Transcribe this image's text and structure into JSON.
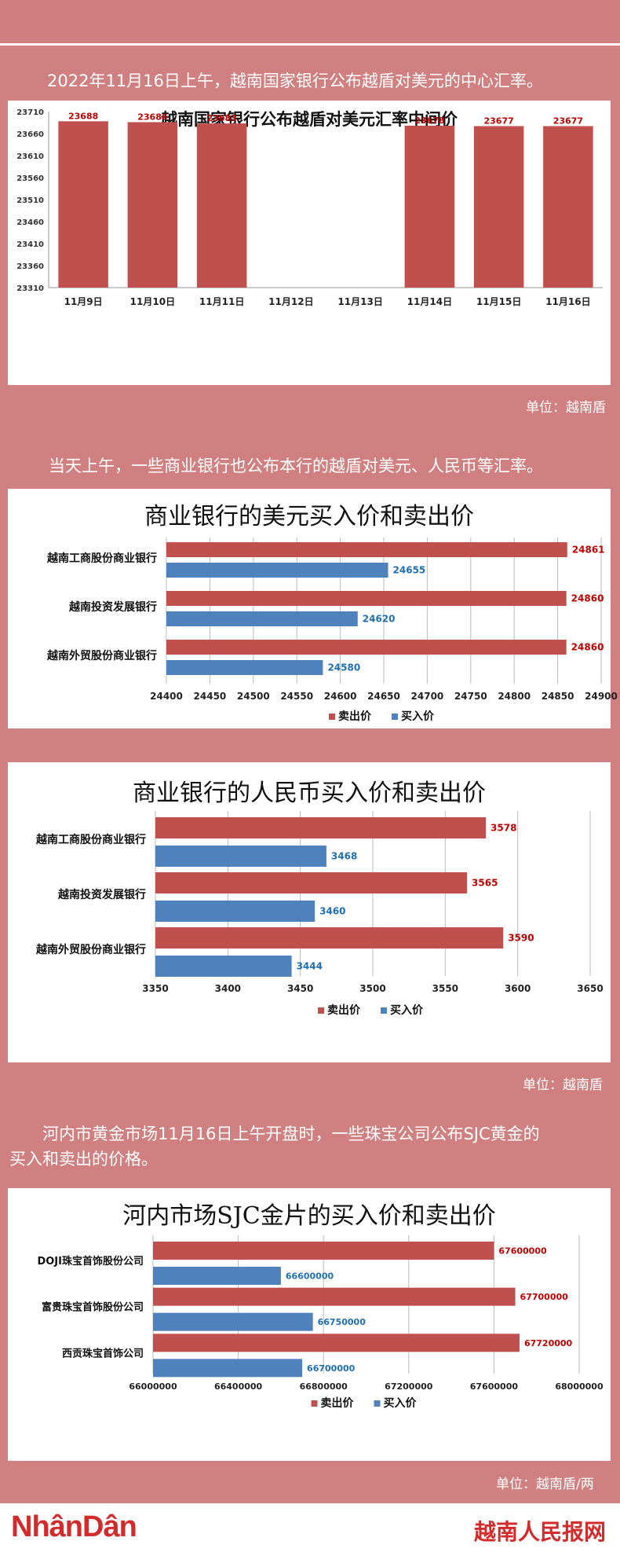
{
  "intro1": "2022年11月16日上午，越南国家银行公布越盾对美元的中心汇率。",
  "intro2": "当天上午，一些商业银行也公布本行的越盾对美元、人民币等汇率。",
  "intro3_line1": "河内市黄金市场11月16日上午开盘时，一些珠宝公司公布SJC黄金的",
  "intro3_line2": "买入和卖出的价格。",
  "unit1": "单位：越南盾",
  "unit2": "单位：越南盾",
  "unit3": "单位：越南盾/两",
  "footer": {
    "logo": "NhânDân",
    "brand": "越南人民报网"
  },
  "colors": {
    "sell": "#c0504d",
    "buy": "#4f81bd",
    "bg": "#d08080"
  },
  "legend": {
    "sell": "卖出价",
    "buy": "买入价"
  },
  "chart_data": [
    {
      "type": "bar",
      "title": "越南国家银行公布越盾对美元汇率中间价",
      "categories": [
        "11月9日",
        "11月10日",
        "11月11日",
        "11月12日",
        "11月13日",
        "11月14日",
        "11月15日",
        "11月16日"
      ],
      "values": [
        23688,
        23686,
        23683,
        null,
        null,
        23678,
        23677,
        23677
      ],
      "yticks": [
        23310,
        23360,
        23410,
        23460,
        23510,
        23560,
        23610,
        23660,
        23710
      ],
      "ylim": [
        23310,
        23710
      ],
      "color": "#c0504d"
    },
    {
      "type": "bar",
      "orientation": "horizontal",
      "title": "商业银行的美元买入价和卖出价",
      "categories": [
        "越南工商股份商业银行",
        "越南投资发展银行",
        "越南外贸股份商业银行"
      ],
      "series": [
        {
          "name": "卖出价",
          "values": [
            24861,
            24860,
            24860
          ]
        },
        {
          "name": "买入价",
          "values": [
            24655,
            24620,
            24580
          ]
        }
      ],
      "xticks": [
        24400,
        24450,
        24500,
        24550,
        24600,
        24650,
        24700,
        24750,
        24800,
        24850,
        24900
      ],
      "xlim": [
        24400,
        24900
      ],
      "legend": "bottom"
    },
    {
      "type": "bar",
      "orientation": "horizontal",
      "title": "商业银行的人民币买入价和卖出价",
      "categories": [
        "越南工商股份商业银行",
        "越南投资发展银行",
        "越南外贸股份商业银行"
      ],
      "series": [
        {
          "name": "卖出价",
          "values": [
            3578,
            3565,
            3590
          ]
        },
        {
          "name": "买入价",
          "values": [
            3468,
            3460,
            3444
          ]
        }
      ],
      "xticks": [
        3350,
        3400,
        3450,
        3500,
        3550,
        3600,
        3650
      ],
      "xlim": [
        3350,
        3650
      ],
      "legend": "bottom"
    },
    {
      "type": "bar",
      "orientation": "horizontal",
      "title": "河内市场SJC金片的买入价和卖出价",
      "categories": [
        "DOJI珠宝首饰股份公司",
        "富贵珠宝首饰股份公司",
        "西贡珠宝首饰公司"
      ],
      "series": [
        {
          "name": "卖出价",
          "values": [
            67600000,
            67700000,
            67720000
          ]
        },
        {
          "name": "买入价",
          "values": [
            66600000,
            66750000,
            66700000
          ]
        }
      ],
      "xticks": [
        66000000,
        66400000,
        66800000,
        67200000,
        67600000,
        68000000
      ],
      "xlim": [
        66000000,
        68000000
      ],
      "legend": "bottom"
    }
  ]
}
